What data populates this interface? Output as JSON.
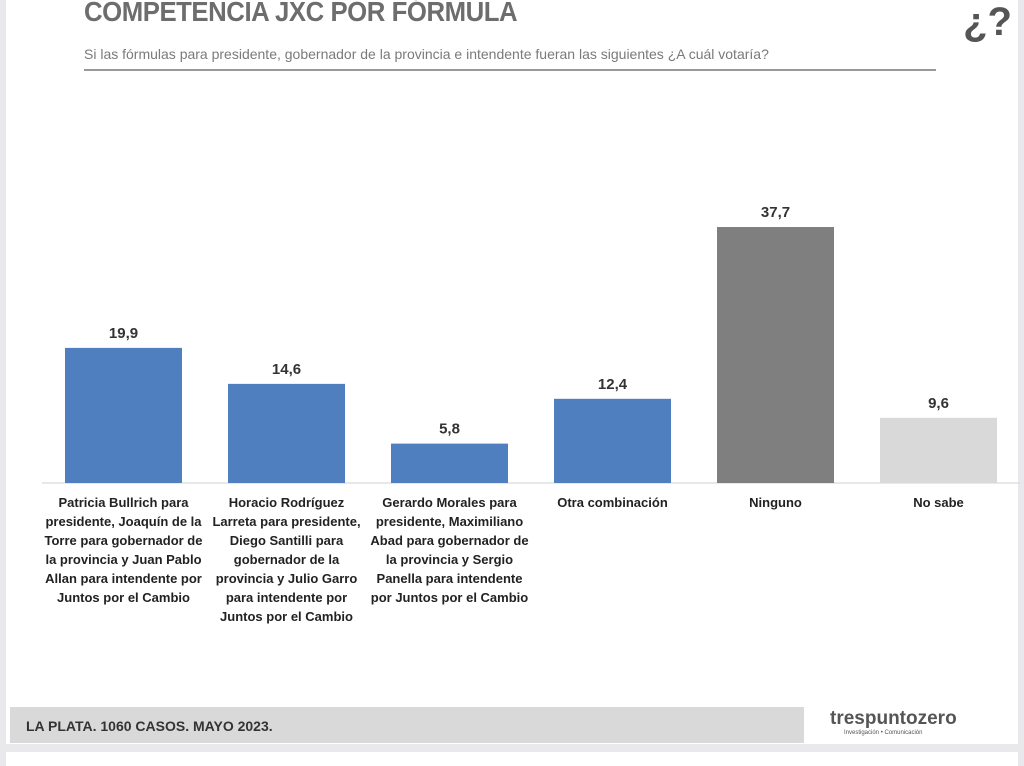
{
  "header": {
    "title": "COMPETENCIA JXC POR FÓRMULA",
    "subtitle": "Si las fórmulas para presidente, gobernador de la provincia e intendente fueran las siguientes ¿A cuál votaría?"
  },
  "chart_data": {
    "type": "bar",
    "title": "COMPETENCIA JXC POR FÓRMULA",
    "categories": [
      "Patricia Bullrich para presidente, Joaquín de la Torre para gobernador de la provincia y Juan Pablo Allan para intendente por Juntos por el Cambio",
      "Horacio Rodríguez Larreta para presidente, Diego Santilli para gobernador de la provincia y Julio Garro para intendente por Juntos por el Cambio",
      "Gerardo Morales para presidente, Maximiliano Abad para gobernador de la provincia y Sergio Panella para intendente por Juntos por el Cambio",
      "Otra combinación",
      "Ninguno",
      "No sabe"
    ],
    "values": [
      19.9,
      14.6,
      5.8,
      12.4,
      37.7,
      9.6
    ],
    "value_labels": [
      "19,9",
      "14,6",
      "5,8",
      "12,4",
      "37,7",
      "9,6"
    ],
    "colors": [
      "#4f7fbf",
      "#4f7fbf",
      "#4f7fbf",
      "#4f7fbf",
      "#7f7f7f",
      "#d9d9d9"
    ],
    "ylim": [
      0,
      40
    ],
    "grid": false
  },
  "footer": {
    "text": "LA PLATA. 1060 CASOS. MAYO 2023.",
    "logo": "trespuntozero",
    "logo_tagline": "Investigación • Comunicación"
  }
}
